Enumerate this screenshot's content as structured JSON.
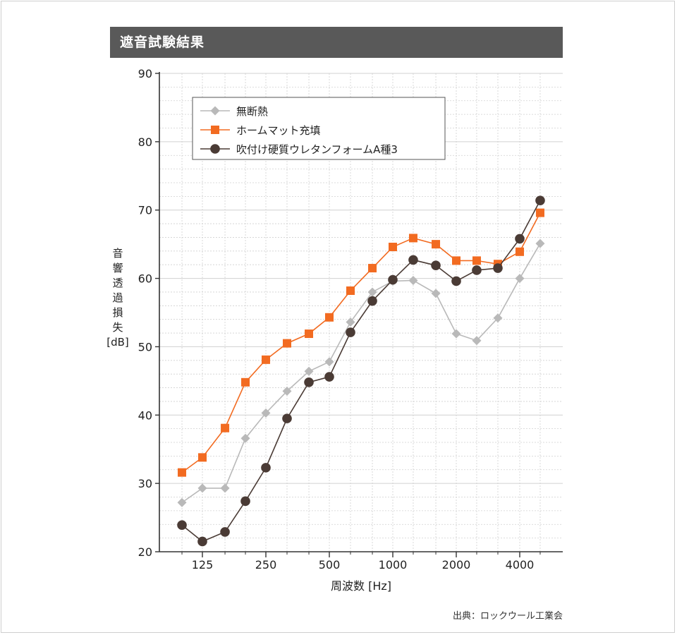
{
  "header": {
    "title": "遮音試験結果"
  },
  "source_note": "出典：ロックウール工業会",
  "colors": {
    "no_insulation": "#b9b9b9",
    "home_mat": "#f26b21",
    "spray_urethane": "#4a3b35",
    "grid": "#d0d0d0",
    "axis": "#333333"
  },
  "chart_data": {
    "type": "line",
    "title": "遮音試験結果",
    "xlabel": "周波数 [Hz]",
    "ylabel_lines": [
      "音",
      "響",
      "透",
      "過",
      "損",
      "失",
      "[dB]"
    ],
    "x_scale": "log2 (1/3 octave bands)",
    "x": [
      100,
      125,
      160,
      200,
      250,
      315,
      400,
      500,
      630,
      800,
      1000,
      1250,
      1600,
      2000,
      2500,
      3150,
      4000,
      5000
    ],
    "x_ticks": [
      125,
      250,
      500,
      1000,
      2000,
      4000
    ],
    "x_tick_labels": [
      "125",
      "250",
      "500",
      "1000",
      "2000",
      "4000"
    ],
    "ylim": [
      20,
      90
    ],
    "y_ticks": [
      20,
      30,
      40,
      50,
      60,
      70,
      80,
      90
    ],
    "grid": true,
    "legend_position": "top-left",
    "series": [
      {
        "name": "無断熱",
        "marker": "diamond",
        "color": "#b9b9b9",
        "values": [
          27.2,
          29.3,
          29.3,
          36.6,
          40.3,
          43.5,
          46.4,
          47.8,
          53.6,
          58.0,
          59.6,
          59.7,
          57.8,
          51.9,
          50.9,
          54.2,
          60.0,
          65.1
        ]
      },
      {
        "name": "ホームマット充填",
        "marker": "square",
        "color": "#f26b21",
        "values": [
          31.6,
          33.8,
          38.1,
          44.8,
          48.1,
          50.5,
          51.9,
          54.3,
          58.2,
          61.5,
          64.6,
          65.9,
          65.0,
          62.6,
          62.6,
          62.1,
          63.9,
          69.6
        ]
      },
      {
        "name": "吹付け硬質ウレタンフォームA種3",
        "marker": "circle",
        "color": "#4a3b35",
        "values": [
          23.9,
          21.5,
          22.9,
          27.4,
          32.3,
          39.5,
          44.8,
          45.6,
          52.1,
          56.7,
          59.8,
          62.7,
          61.9,
          59.6,
          61.2,
          61.5,
          65.8,
          71.4
        ]
      }
    ]
  }
}
